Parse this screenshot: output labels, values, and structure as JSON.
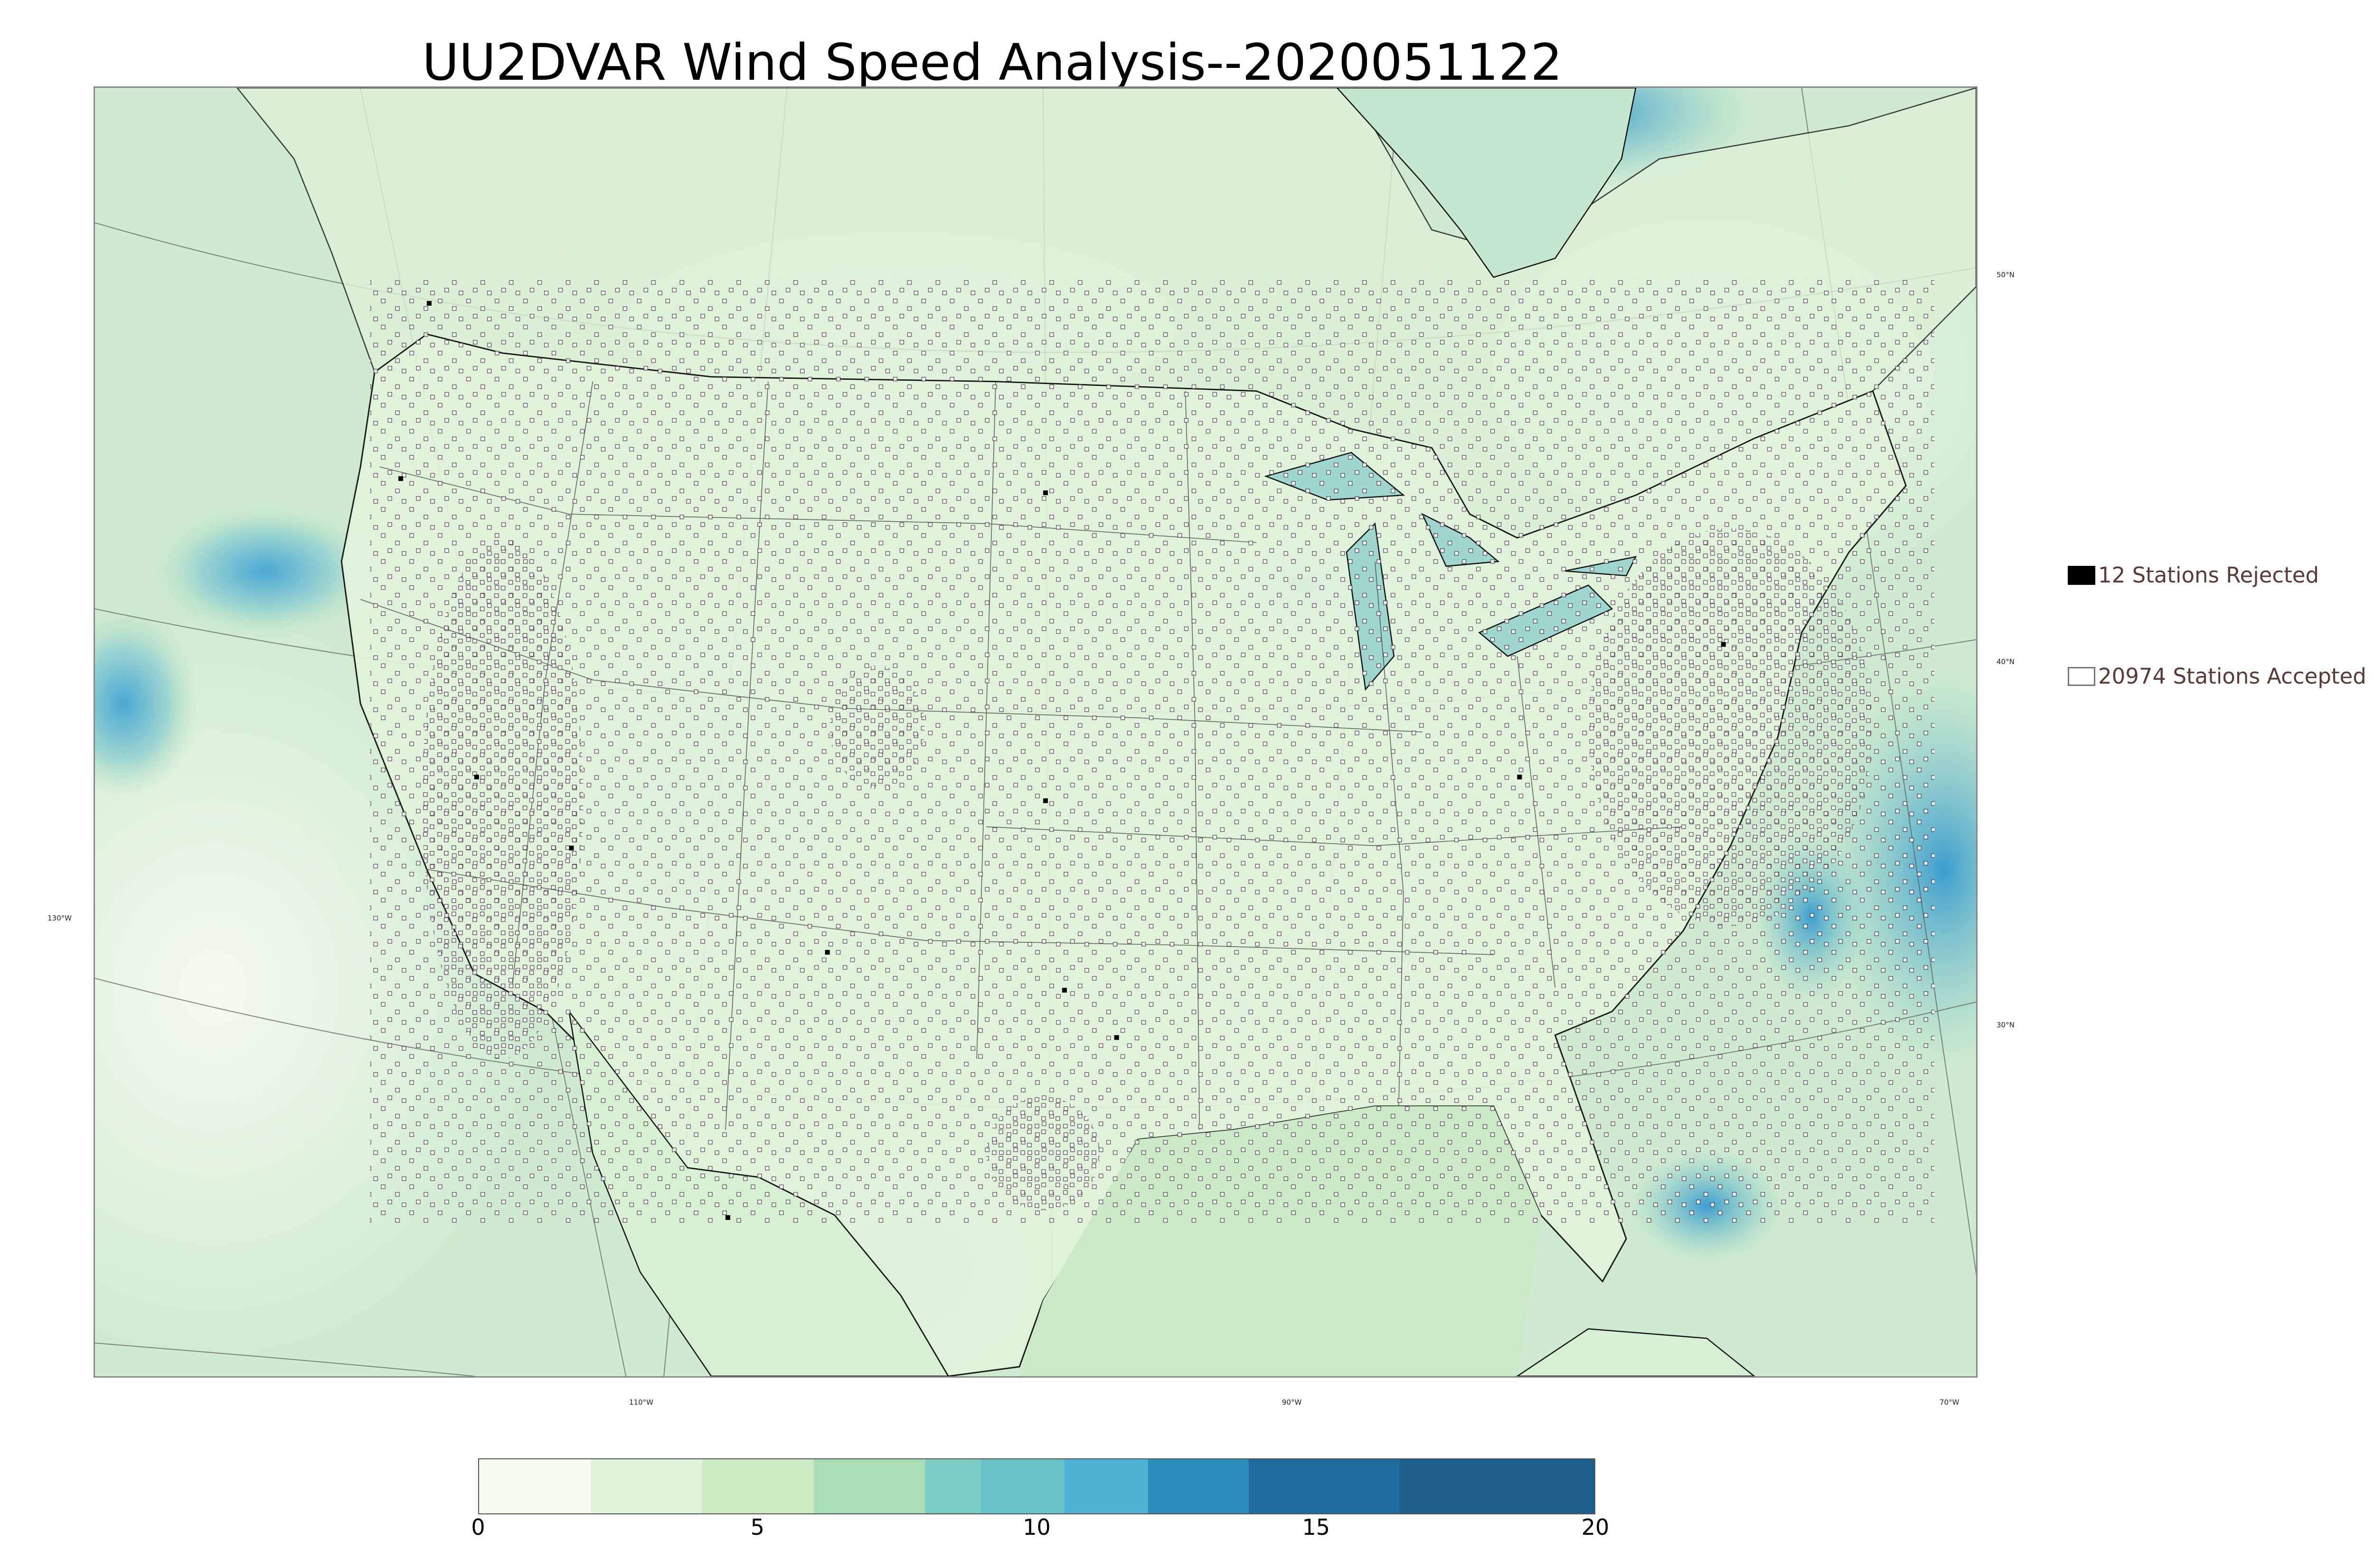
{
  "title": "UU2DVAR Wind Speed Analysis--2020051122",
  "map": {
    "longitude_labels": [
      "130°W",
      "110°W",
      "90°W",
      "70°W"
    ],
    "latitude_labels": [
      "50°N",
      "40°N",
      "30°N"
    ],
    "field": "wind speed",
    "station_colors": {
      "accepted": "#ffffff",
      "rejected": "#000000",
      "outline": "#4a3c48"
    },
    "basemap_colors": {
      "land_light": "#eaf6e3",
      "land_mid": "#cbe9c6",
      "ocean": "#bfe5c8",
      "strong": "#4aa8d4",
      "coast": "#111111"
    }
  },
  "legend": {
    "rejected_label": "12 Stations Rejected",
    "accepted_label": "20974 Stations Accepted"
  },
  "colorbar": {
    "ticks": [
      "0",
      "5",
      "10",
      "15",
      "20"
    ],
    "range": [
      0,
      20
    ],
    "colors": [
      "#f7fcf0",
      "#e0f3db",
      "#ccebc5",
      "#a8ddb5",
      "#7bccc4",
      "#68c2c8",
      "#4eb3d3",
      "#2b8cbe",
      "#1f6b9e",
      "#1f5f8b"
    ],
    "bounds": [
      0,
      2,
      4,
      6,
      8,
      9,
      10.5,
      12,
      13.8,
      16.5,
      20
    ]
  }
}
